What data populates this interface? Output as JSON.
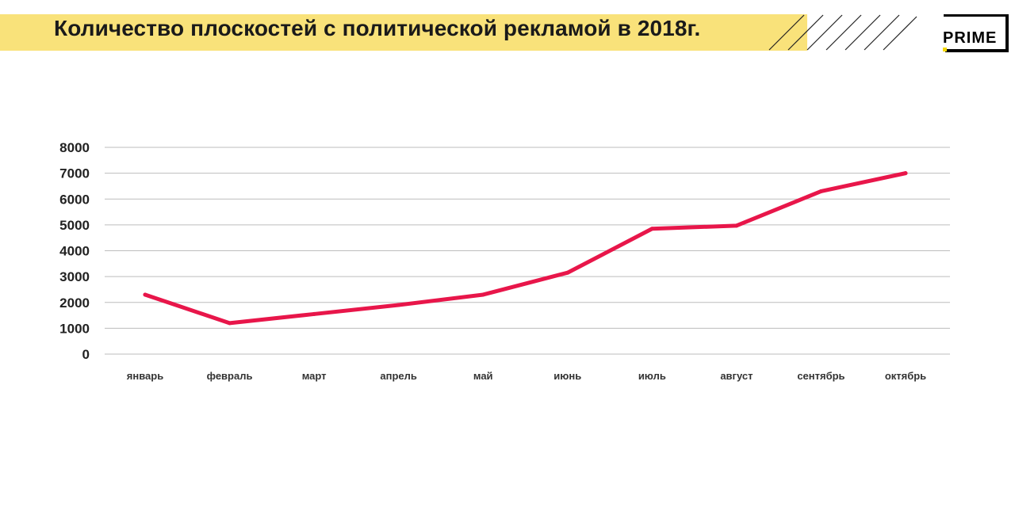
{
  "header": {
    "title": "Количество плоскостей с политической рекламой в 2018г.",
    "logo_text": "PRIME",
    "band_color": "#f9e27a"
  },
  "chart_data": {
    "type": "line",
    "title": "Количество плоскостей с политической рекламой в 2018г.",
    "categories": [
      "январь",
      "февраль",
      "март",
      "апрель",
      "май",
      "июнь",
      "июль",
      "август",
      "сентябрь",
      "октябрь"
    ],
    "series": [
      {
        "values": [
          2300,
          1200,
          1550,
          1900,
          2300,
          3150,
          4850,
          4970,
          6300,
          7000
        ],
        "color": "#e8164a"
      }
    ],
    "ylim": [
      0,
      8000
    ],
    "yticks": [
      "0",
      "1000",
      "2000",
      "3000",
      "4000",
      "5000",
      "6000",
      "7000",
      "8000"
    ],
    "grid": true,
    "legend": "none"
  }
}
